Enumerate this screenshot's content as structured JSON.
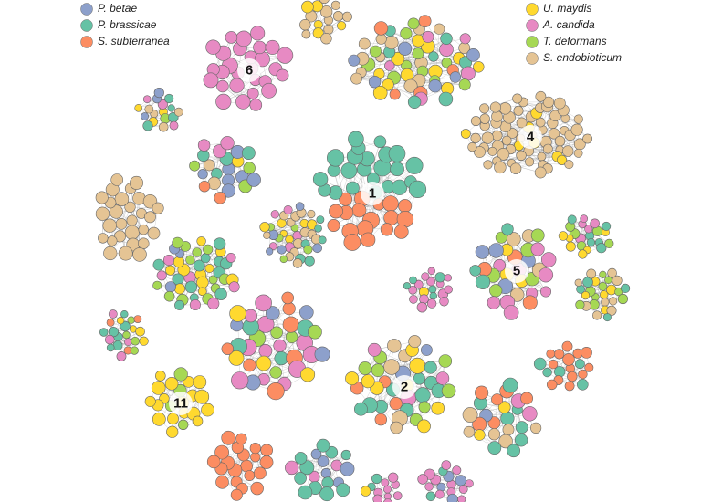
{
  "legend": {
    "items": [
      {
        "label": "P. betae",
        "color": "#8da0cb"
      },
      {
        "label": "P. brassicae",
        "color": "#66c2a5"
      },
      {
        "label": "S. subterranea",
        "color": "#fc8d62"
      },
      {
        "label": "U. maydis",
        "color": "#ffd92f"
      },
      {
        "label": "A. candida",
        "color": "#e78ac3"
      },
      {
        "label": "T. deformans",
        "color": "#a6d854"
      },
      {
        "label": "S. endobioticum",
        "color": "#e5c494"
      }
    ]
  },
  "clusters": [
    {
      "label": "1"
    },
    {
      "label": "2"
    },
    {
      "label": "4"
    },
    {
      "label": "5"
    },
    {
      "label": "6"
    },
    {
      "label": "11"
    }
  ]
}
